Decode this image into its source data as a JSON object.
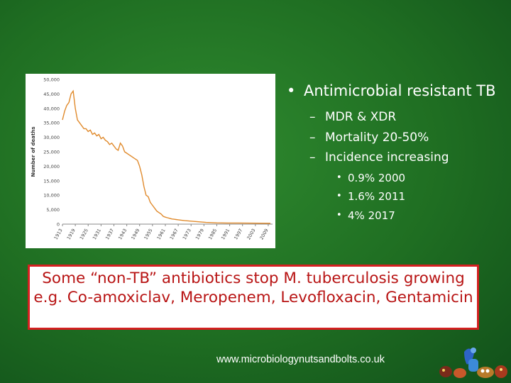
{
  "bullets": {
    "main": "Antimicrobial resistant TB",
    "sub": [
      {
        "label": "MDR & XDR"
      },
      {
        "label": "Mortality 20-50%"
      },
      {
        "label": "Incidence increasing"
      }
    ],
    "subsub": [
      {
        "label": "0.9% 2000"
      },
      {
        "label": "1.6% 2011"
      },
      {
        "label": "4% 2017"
      }
    ]
  },
  "callout": {
    "text": "Some “non-TB” antibiotics stop M. tuberculosis growing e.g. Co-amoxiclav, Meropenem, Levofloxacin, Gentamicin"
  },
  "footer": {
    "url": "www.microbiologynutsandbolts.co.uk"
  },
  "colors": {
    "line": "#e08a2c",
    "callout_border": "#d42020",
    "callout_text": "#b81414"
  },
  "logo": {
    "icon": "microbe-cartoon-icon"
  },
  "chart_data": {
    "type": "line",
    "title": "",
    "xlabel": "",
    "ylabel": "Number of deaths",
    "xlim": [
      1913,
      2011
    ],
    "ylim": [
      0,
      50000
    ],
    "yticks": [
      0,
      5000,
      10000,
      15000,
      20000,
      25000,
      30000,
      35000,
      40000,
      45000,
      50000
    ],
    "ytick_labels": [
      "0",
      "5,000",
      "10,000",
      "15,000",
      "20,000",
      "25,000",
      "30,000",
      "35,000",
      "40,000",
      "45,000",
      "50,000"
    ],
    "xticks": [
      1913,
      1919,
      1925,
      1931,
      1937,
      1943,
      1949,
      1955,
      1961,
      1967,
      1973,
      1979,
      1985,
      1991,
      1997,
      2003,
      2009
    ],
    "xtick_labels": [
      "1913",
      "1919",
      "1925",
      "1931",
      "1937",
      "1943",
      "1949",
      "1955",
      "1961",
      "1967",
      "1973",
      "1979",
      "1985",
      "1991",
      "1997",
      "2003",
      "2009"
    ],
    "grid": false,
    "series": [
      {
        "x": [
          1913,
          1914,
          1915,
          1916,
          1917,
          1918,
          1919,
          1920,
          1921,
          1922,
          1923,
          1924,
          1925,
          1926,
          1927,
          1928,
          1929,
          1930,
          1931,
          1932,
          1933,
          1934,
          1935,
          1936,
          1937,
          1938,
          1939,
          1940,
          1941,
          1942,
          1943,
          1944,
          1945,
          1946,
          1947,
          1948,
          1949,
          1950,
          1951,
          1952,
          1953,
          1954,
          1955,
          1956,
          1957,
          1958,
          1959,
          1960,
          1961,
          1962,
          1963,
          1964,
          1965,
          1966,
          1967,
          1968,
          1970,
          1975,
          1980,
          1985,
          1990,
          1995,
          2000,
          2005,
          2010
        ],
        "y": [
          36000,
          39000,
          41000,
          42000,
          45000,
          46000,
          40000,
          36000,
          35000,
          34000,
          33000,
          33000,
          32000,
          32500,
          31000,
          31500,
          30500,
          31000,
          29500,
          30000,
          29000,
          28500,
          27500,
          28000,
          27000,
          26000,
          25500,
          28000,
          27000,
          25000,
          24500,
          24000,
          23500,
          23000,
          22500,
          22000,
          20000,
          17000,
          13000,
          10000,
          9500,
          7500,
          6500,
          5500,
          4500,
          4000,
          3500,
          2700,
          2400,
          2200,
          2000,
          1800,
          1700,
          1600,
          1500,
          1400,
          1200,
          900,
          600,
          450,
          400,
          380,
          350,
          330,
          300
        ]
      }
    ]
  }
}
